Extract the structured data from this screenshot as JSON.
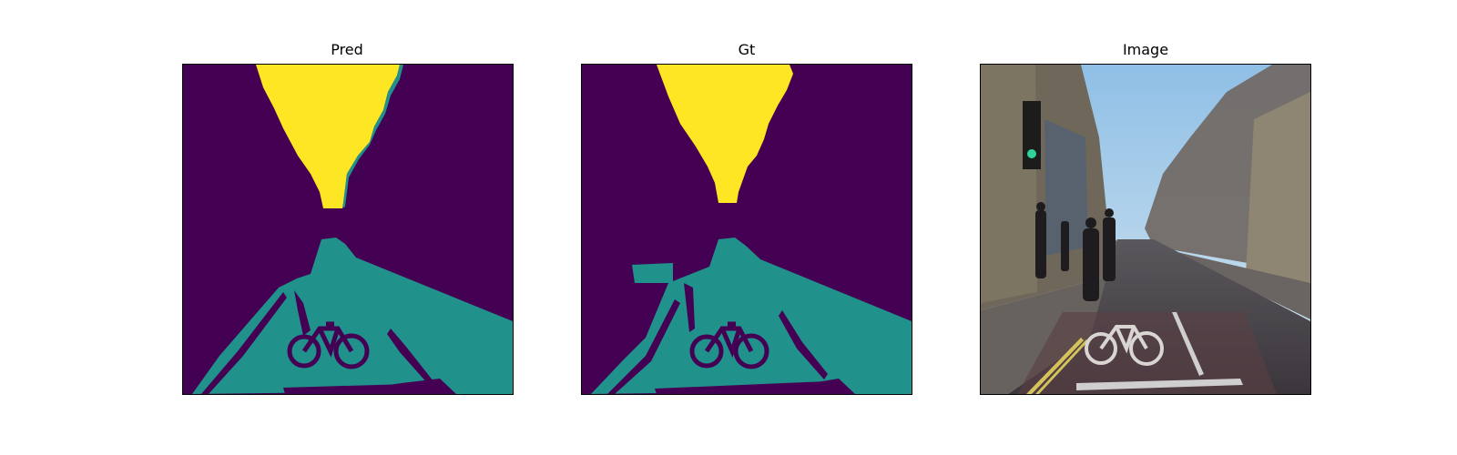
{
  "panels": [
    {
      "title": "Pred"
    },
    {
      "title": "Gt"
    },
    {
      "title": "Image"
    }
  ],
  "colors": {
    "background_class": "#440154",
    "road_class": "#21918c",
    "sky_class": "#fde725",
    "sky_photo": "#a9cbe5",
    "road_photo": "#4e4b50",
    "sidewalk_photo": "#67625e",
    "building_photo": "#76705f"
  }
}
